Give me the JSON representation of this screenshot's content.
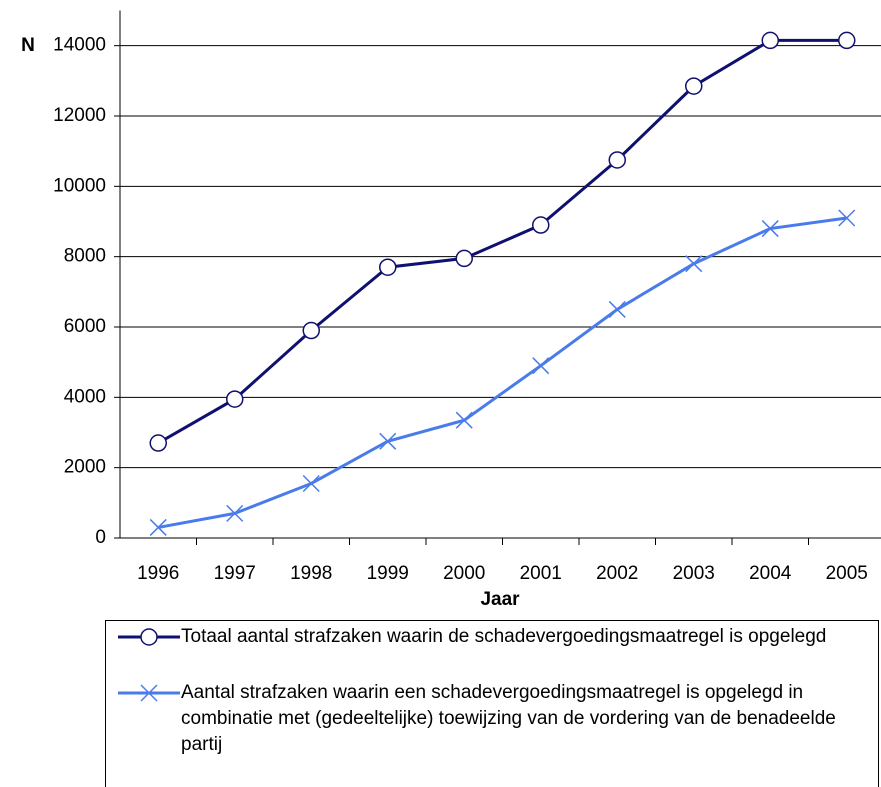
{
  "chart_data": {
    "type": "line",
    "y_label": "N",
    "x_label": "Jaar",
    "categories": [
      "1996",
      "1997",
      "1998",
      "1999",
      "2000",
      "2001",
      "2002",
      "2003",
      "2004",
      "2005"
    ],
    "series": [
      {
        "name": "Totaal aantal strafzaken waarin de schadevergoedingsmaatregel is opgelegd",
        "color": "#101070",
        "marker": "circle",
        "values": [
          2700,
          3950,
          5900,
          7700,
          7950,
          8900,
          10750,
          12850,
          14150,
          14150
        ]
      },
      {
        "name": "Aantal strafzaken waarin een schadevergoedingsmaatregel is opgelegd in combinatie met (gedeeltelijke) toewijzing van de vordering van de benadeelde partij",
        "color": "#4a7bea",
        "marker": "x",
        "values": [
          300,
          700,
          1550,
          2750,
          3350,
          4900,
          6500,
          7800,
          8800,
          9100
        ]
      }
    ],
    "ylim": [
      0,
      15000
    ],
    "yticks": [
      0,
      2000,
      4000,
      6000,
      8000,
      10000,
      12000,
      14000
    ],
    "grid": true
  }
}
